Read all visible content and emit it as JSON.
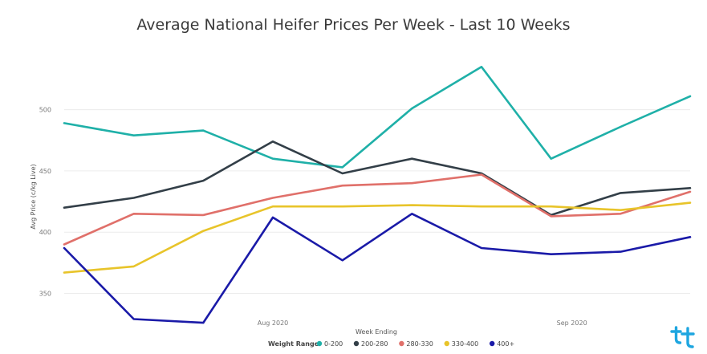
{
  "chart_data": {
    "type": "line",
    "title": "Average National Heifer Prices Per Week - Last 10 Weeks",
    "xlabel": "Week Ending",
    "ylabel": "Avg Price (c/kg Live)",
    "x_ticks": [
      "Aug 2020",
      "Sep 2020"
    ],
    "y_ticks": [
      350,
      400,
      450,
      500
    ],
    "ylim": [
      330,
      545
    ],
    "num_points": 10,
    "grid": true,
    "legend": {
      "title": "Weight Range",
      "placement": "bottom-center"
    },
    "series": [
      {
        "name": "0-200",
        "color": "#1fb0a8",
        "values": [
          489,
          479,
          483,
          460,
          453,
          501,
          535,
          460,
          486,
          511
        ]
      },
      {
        "name": "200-280",
        "color": "#333f48",
        "values": [
          420,
          428,
          442,
          474,
          448,
          460,
          448,
          414,
          432,
          436
        ]
      },
      {
        "name": "280-330",
        "color": "#e0706a",
        "values": [
          390,
          415,
          414,
          428,
          438,
          440,
          447,
          413,
          415,
          433
        ]
      },
      {
        "name": "330-400",
        "color": "#e8c42a",
        "values": [
          367,
          372,
          401,
          421,
          421,
          422,
          421,
          421,
          418,
          424
        ]
      },
      {
        "name": "400+",
        "color": "#1a1aa8",
        "values": [
          387,
          329,
          326,
          412,
          377,
          415,
          387,
          382,
          384,
          396
        ]
      }
    ]
  },
  "brand": {
    "logo_icon": "tt-brand-logo-icon",
    "color": "#1ea6e0"
  }
}
